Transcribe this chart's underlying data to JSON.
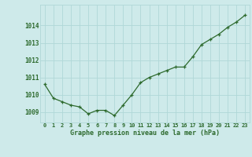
{
  "x": [
    0,
    1,
    2,
    3,
    4,
    5,
    6,
    7,
    8,
    9,
    10,
    11,
    12,
    13,
    14,
    15,
    16,
    17,
    18,
    19,
    20,
    21,
    22,
    23
  ],
  "y": [
    1010.6,
    1009.8,
    1009.6,
    1009.4,
    1009.3,
    1008.9,
    1009.1,
    1009.1,
    1008.8,
    1009.4,
    1010.0,
    1010.7,
    1011.0,
    1011.2,
    1011.4,
    1011.6,
    1011.6,
    1012.2,
    1012.9,
    1013.2,
    1013.5,
    1013.9,
    1014.2,
    1014.6
  ],
  "line_color": "#2d6a2d",
  "marker_color": "#2d6a2d",
  "bg_color": "#ceeaea",
  "grid_color": "#b0d8d8",
  "xlabel": "Graphe pression niveau de la mer (hPa)",
  "xlabel_color": "#2d6a2d",
  "ylabel_ticks": [
    1009,
    1010,
    1011,
    1012,
    1013,
    1014
  ],
  "ytick_color": "#2d6a2d",
  "xtick_color": "#2d6a2d",
  "ylim": [
    1008.4,
    1015.2
  ],
  "xlim": [
    -0.5,
    23.5
  ]
}
